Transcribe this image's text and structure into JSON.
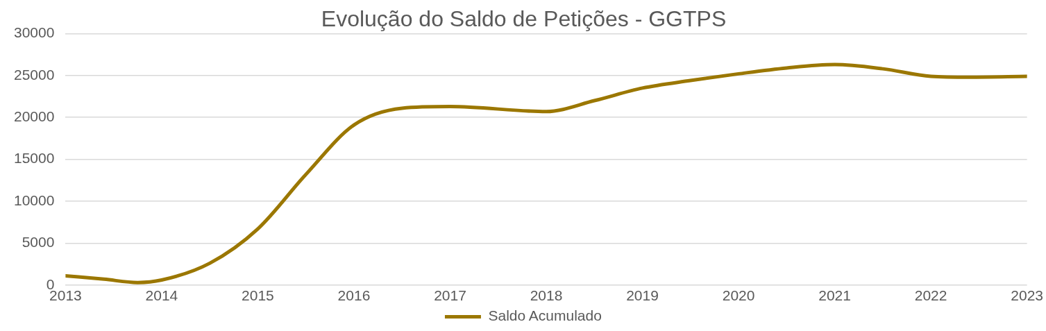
{
  "chart_data": {
    "type": "line",
    "title": "Evolução do Saldo de Petições - GGTPS",
    "x": [
      2013,
      2013.4,
      2013.75,
      2014,
      2014.5,
      2015,
      2015.5,
      2016,
      2016.5,
      2017,
      2018,
      2018.5,
      2019,
      2019.5,
      2020,
      2020.5,
      2021,
      2021.5,
      2022,
      2022.4,
      2023
    ],
    "series": [
      {
        "name": "Saldo Acumulado",
        "color": "#9b7700",
        "values": [
          1100,
          700,
          300,
          600,
          2600,
          6700,
          13200,
          19100,
          21100,
          21300,
          20700,
          22000,
          23500,
          24400,
          25200,
          25900,
          26300,
          25800,
          24900,
          24800,
          24900
        ]
      }
    ],
    "xlim": [
      2013,
      2023
    ],
    "xticks": [
      2013,
      2014,
      2015,
      2016,
      2017,
      2018,
      2019,
      2020,
      2021,
      2022,
      2023
    ],
    "ylim": [
      0,
      30000
    ],
    "yticks": [
      0,
      5000,
      10000,
      15000,
      20000,
      25000,
      30000
    ],
    "grid": "y",
    "legend": "bottom",
    "line_style": "solid"
  }
}
